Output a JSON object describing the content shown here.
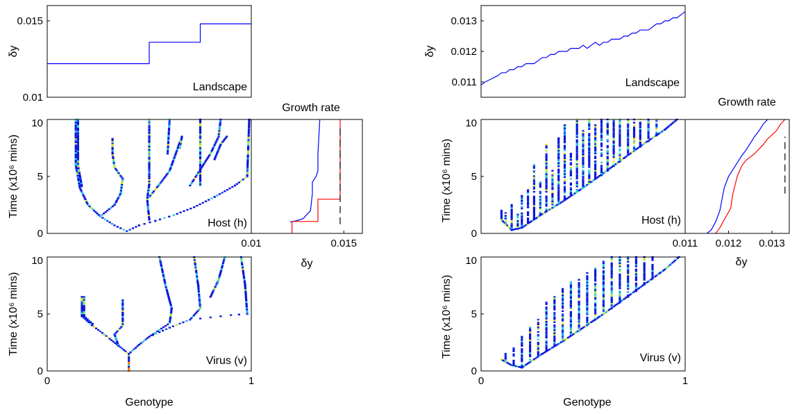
{
  "chart_data": [
    {
      "panel": "left-landscape",
      "type": "line",
      "ylabel": "δy",
      "xlim": [
        0,
        1
      ],
      "ylim": [
        0.01,
        0.016
      ],
      "yticks": [
        "0.01",
        "0.015"
      ],
      "annotation": "Landscape",
      "series": [
        {
          "color": "#0000ff",
          "x": [
            0,
            0.5,
            0.5,
            0.75,
            0.75,
            1
          ],
          "y": [
            0.0122,
            0.0122,
            0.0136,
            0.0136,
            0.0148,
            0.0148
          ]
        }
      ]
    },
    {
      "panel": "left-host",
      "type": "heatmap",
      "ylabel": "Time (x10⁶ mins)",
      "xlim": [
        0,
        1
      ],
      "ylim": [
        0,
        10
      ],
      "yticks": [
        "0",
        "5",
        "10"
      ],
      "annotation": "Host (h)",
      "branches": [
        [
          [
            0.39,
            0.2
          ],
          [
            0.33,
            0.7
          ],
          [
            0.26,
            1.5
          ],
          [
            0.2,
            2.5
          ],
          [
            0.16,
            4
          ],
          [
            0.14,
            6
          ],
          [
            0.14,
            10
          ]
        ],
        [
          [
            0.39,
            0.2
          ],
          [
            0.45,
            0.7
          ],
          [
            0.53,
            1.1
          ],
          [
            0.62,
            1.6
          ],
          [
            0.72,
            2.3
          ],
          [
            0.82,
            3.2
          ],
          [
            0.92,
            4.2
          ],
          [
            0.98,
            5
          ],
          [
            0.99,
            10
          ]
        ],
        [
          [
            0.26,
            1.5
          ],
          [
            0.33,
            2.5
          ],
          [
            0.36,
            3.5
          ],
          [
            0.37,
            4.8
          ],
          [
            0.33,
            5.8
          ],
          [
            0.32,
            7
          ],
          [
            0.32,
            8.3
          ]
        ],
        [
          [
            0.5,
            1.2
          ],
          [
            0.49,
            3
          ],
          [
            0.5,
            4.3
          ],
          [
            0.5,
            10
          ]
        ],
        [
          [
            0.5,
            3.2
          ],
          [
            0.55,
            4.3
          ],
          [
            0.6,
            5.5
          ],
          [
            0.63,
            7
          ],
          [
            0.65,
            8
          ]
        ],
        [
          [
            0.7,
            4.2
          ],
          [
            0.75,
            5.6
          ],
          [
            0.8,
            7
          ],
          [
            0.84,
            8.5
          ],
          [
            0.85,
            10
          ]
        ],
        [
          [
            0.82,
            6.5
          ],
          [
            0.85,
            7.8
          ],
          [
            0.88,
            8.5
          ]
        ],
        [
          [
            0.75,
            4.2
          ],
          [
            0.75,
            10
          ]
        ],
        [
          [
            0.59,
            7
          ],
          [
            0.6,
            10
          ]
        ],
        [
          [
            0.65,
            7.5
          ],
          [
            0.66,
            8.5
          ]
        ]
      ]
    },
    {
      "panel": "left-growth-rate",
      "type": "line",
      "title": "Growth rate",
      "xlabel": "δy",
      "xlim": [
        0.01,
        0.016
      ],
      "ylim": [
        0,
        10
      ],
      "xticks": [
        "0.01",
        "0.015"
      ],
      "series": [
        {
          "color": "#0000ff",
          "x": [
            0.0121,
            0.0124,
            0.0128,
            0.0132,
            0.0133,
            0.0133,
            0.0135,
            0.0136,
            0.0136,
            0.0137
          ],
          "y": [
            1,
            1.1,
            1.3,
            2.0,
            3.5,
            4.5,
            5.0,
            5.5,
            7,
            10
          ]
        },
        {
          "color": "#ff0000",
          "x": [
            0.0122,
            0.0122,
            0.0136,
            0.0136,
            0.0148,
            0.0148
          ],
          "y": [
            0,
            1.05,
            1.05,
            3.0,
            3.0,
            10
          ]
        },
        {
          "color": "#000000",
          "dash": true,
          "x": [
            0.0148,
            0.0148
          ],
          "y": [
            0.8,
            9.5
          ]
        }
      ]
    },
    {
      "panel": "left-virus",
      "type": "heatmap",
      "xlabel": "Genotype",
      "ylabel": "Time (x10⁶ mins)",
      "xlim": [
        0,
        1
      ],
      "ylim": [
        0,
        10
      ],
      "xticks": [
        "0",
        "1"
      ],
      "yticks": [
        "0",
        "5",
        "10"
      ],
      "annotation": "Virus (v)",
      "branches": [
        [
          [
            0.4,
            0
          ],
          [
            0.4,
            1.5
          ],
          [
            0.35,
            2.2
          ],
          [
            0.28,
            3.2
          ],
          [
            0.22,
            4
          ],
          [
            0.17,
            4.8
          ],
          [
            0.17,
            6.5
          ]
        ],
        [
          [
            0.4,
            1.5
          ],
          [
            0.45,
            2.3
          ],
          [
            0.5,
            3
          ],
          [
            0.55,
            3.6
          ],
          [
            0.6,
            4.2
          ],
          [
            0.61,
            5.5
          ],
          [
            0.58,
            7.5
          ],
          [
            0.55,
            10
          ]
        ],
        [
          [
            0.35,
            2.2
          ],
          [
            0.33,
            3.2
          ],
          [
            0.37,
            4
          ],
          [
            0.37,
            5
          ],
          [
            0.37,
            6.2
          ]
        ],
        [
          [
            0.5,
            3
          ],
          [
            0.6,
            3.8
          ],
          [
            0.7,
            4.5
          ],
          [
            0.75,
            5.5
          ],
          [
            0.74,
            7.5
          ],
          [
            0.72,
            10
          ]
        ],
        [
          [
            0.7,
            4.5
          ],
          [
            0.8,
            4.7
          ],
          [
            0.9,
            4.9
          ],
          [
            0.98,
            5
          ],
          [
            0.97,
            7.5
          ],
          [
            0.95,
            10
          ]
        ],
        [
          [
            0.8,
            6.5
          ],
          [
            0.84,
            8
          ],
          [
            0.87,
            10
          ]
        ]
      ]
    },
    {
      "panel": "right-landscape",
      "type": "line",
      "ylabel": "δy",
      "xlim": [
        0,
        1
      ],
      "ylim": [
        0.0105,
        0.0135
      ],
      "yticks": [
        "0.011",
        "0.012",
        "0.013"
      ],
      "annotation": "Landscape",
      "series": [
        {
          "color": "#0000ff",
          "x": [
            0,
            0.02,
            0.05,
            0.08,
            0.1,
            0.12,
            0.14,
            0.16,
            0.18,
            0.2,
            0.22,
            0.24,
            0.26,
            0.28,
            0.3,
            0.32,
            0.34,
            0.36,
            0.38,
            0.4,
            0.42,
            0.44,
            0.46,
            0.48,
            0.5,
            0.52,
            0.54,
            0.56,
            0.58,
            0.6,
            0.62,
            0.64,
            0.66,
            0.68,
            0.7,
            0.72,
            0.74,
            0.76,
            0.78,
            0.8,
            0.82,
            0.84,
            0.86,
            0.88,
            0.9,
            0.92,
            0.94,
            0.96,
            0.98,
            1.0
          ],
          "y": [
            0.0109,
            0.011,
            0.0111,
            0.0112,
            0.0113,
            0.0113,
            0.0114,
            0.0114,
            0.0115,
            0.0115,
            0.0116,
            0.0116,
            0.0116,
            0.0117,
            0.0118,
            0.0118,
            0.0119,
            0.0119,
            0.012,
            0.012,
            0.012,
            0.0121,
            0.0121,
            0.0121,
            0.0122,
            0.0121,
            0.0122,
            0.0123,
            0.0122,
            0.0123,
            0.0123,
            0.0124,
            0.0124,
            0.0124,
            0.0125,
            0.0125,
            0.0126,
            0.0126,
            0.0127,
            0.0127,
            0.0127,
            0.0128,
            0.0129,
            0.0129,
            0.013,
            0.013,
            0.0131,
            0.0131,
            0.0132,
            0.0133
          ]
        }
      ]
    },
    {
      "panel": "right-host",
      "type": "heatmap",
      "ylabel": "Time (x10⁶ mins)",
      "xlim": [
        0,
        1
      ],
      "ylim": [
        0,
        10
      ],
      "yticks": [
        "0",
        "5",
        "10"
      ],
      "annotation": "Host (h)",
      "front": [
        [
          0.1,
          1.2
        ],
        [
          0.15,
          0.3
        ],
        [
          0.2,
          0.5
        ],
        [
          0.3,
          1.7
        ],
        [
          0.4,
          2.8
        ],
        [
          0.5,
          4
        ],
        [
          0.6,
          5.3
        ],
        [
          0.7,
          6.6
        ],
        [
          0.8,
          7.9
        ],
        [
          0.9,
          9.1
        ],
        [
          0.96,
          10
        ]
      ],
      "spikes": [
        [
          0.1,
          1.2,
          2.0
        ],
        [
          0.12,
          0.8,
          1.8
        ],
        [
          0.15,
          0.3,
          2.5
        ],
        [
          0.18,
          0.4,
          1.8
        ],
        [
          0.2,
          0.5,
          3.3
        ],
        [
          0.23,
          0.9,
          3.8
        ],
        [
          0.26,
          1.3,
          6.0
        ],
        [
          0.29,
          1.7,
          4.5
        ],
        [
          0.32,
          2.0,
          7.8
        ],
        [
          0.35,
          2.4,
          5.5
        ],
        [
          0.38,
          2.6,
          8.5
        ],
        [
          0.41,
          3.0,
          9.5
        ],
        [
          0.44,
          3.3,
          7.0
        ],
        [
          0.47,
          3.7,
          10
        ],
        [
          0.5,
          4.0,
          9.0
        ],
        [
          0.53,
          4.4,
          10
        ],
        [
          0.56,
          4.8,
          9.5
        ],
        [
          0.59,
          5.1,
          10
        ],
        [
          0.62,
          5.5,
          10
        ],
        [
          0.65,
          5.9,
          10
        ],
        [
          0.68,
          6.3,
          10
        ],
        [
          0.72,
          6.9,
          10
        ],
        [
          0.75,
          7.2,
          10
        ],
        [
          0.78,
          7.6,
          10
        ],
        [
          0.82,
          8.1,
          10
        ],
        [
          0.86,
          8.6,
          10
        ]
      ]
    },
    {
      "panel": "right-growth-rate",
      "type": "line",
      "title": "Growth rate",
      "xlabel": "δy",
      "xlim": [
        0.011,
        0.0134
      ],
      "ylim": [
        0,
        10
      ],
      "xticks": [
        "0.011",
        "0.012",
        "0.013"
      ],
      "series": [
        {
          "color": "#0000ff",
          "x": [
            0.0115,
            0.0116,
            0.0117,
            0.0118,
            0.01185,
            0.0119,
            0.012,
            0.0121,
            0.0122,
            0.0123,
            0.0124,
            0.0125,
            0.0126,
            0.0127,
            0.0128,
            0.0129
          ],
          "y": [
            0,
            0.3,
            1.0,
            2.0,
            3.0,
            4.0,
            5.0,
            5.6,
            6.2,
            6.8,
            7.3,
            7.9,
            8.5,
            9.0,
            9.6,
            10
          ]
        },
        {
          "color": "#ff0000",
          "x": [
            0.0117,
            0.0118,
            0.0119,
            0.01205,
            0.0121,
            0.0122,
            0.0123,
            0.0124,
            0.0126,
            0.0128,
            0.0129,
            0.0131,
            0.0132,
            0.0133
          ],
          "y": [
            0,
            0.5,
            1.2,
            2.2,
            3.5,
            5.0,
            5.9,
            6.4,
            7.0,
            7.8,
            8.3,
            9.0,
            9.6,
            10
          ]
        },
        {
          "color": "#000000",
          "dash": true,
          "x": [
            0.0133,
            0.0133
          ],
          "y": [
            3.5,
            8.5
          ]
        }
      ]
    },
    {
      "panel": "right-virus",
      "type": "heatmap",
      "xlabel": "Genotype",
      "ylabel": "Time (x10⁶ mins)",
      "xlim": [
        0,
        1
      ],
      "ylim": [
        0,
        10
      ],
      "xticks": [
        "0",
        "1"
      ],
      "yticks": [
        "0",
        "5",
        "10"
      ],
      "annotation": "Virus (v)",
      "front": [
        [
          0.1,
          1.0
        ],
        [
          0.15,
          0.5
        ],
        [
          0.2,
          0.3
        ],
        [
          0.3,
          1.5
        ],
        [
          0.4,
          2.6
        ],
        [
          0.5,
          3.8
        ],
        [
          0.6,
          5.0
        ],
        [
          0.7,
          6.3
        ],
        [
          0.8,
          7.6
        ],
        [
          0.9,
          8.9
        ],
        [
          0.97,
          10
        ]
      ],
      "spikes": [
        [
          0.12,
          0.8,
          1.5
        ],
        [
          0.16,
          0.5,
          2.0
        ],
        [
          0.2,
          0.3,
          3.0
        ],
        [
          0.24,
          1.0,
          3.8
        ],
        [
          0.28,
          1.4,
          4.5
        ],
        [
          0.32,
          1.8,
          6.0
        ],
        [
          0.36,
          2.2,
          6.5
        ],
        [
          0.4,
          2.6,
          7.2
        ],
        [
          0.44,
          3.1,
          7.8
        ],
        [
          0.48,
          3.5,
          8.0
        ],
        [
          0.52,
          4.0,
          8.6
        ],
        [
          0.56,
          4.5,
          9.0
        ],
        [
          0.6,
          5.0,
          9.6
        ],
        [
          0.64,
          5.5,
          10
        ],
        [
          0.68,
          6.0,
          10
        ],
        [
          0.72,
          6.5,
          10
        ],
        [
          0.76,
          7.0,
          10
        ],
        [
          0.8,
          7.6,
          10
        ],
        [
          0.84,
          8.1,
          10
        ]
      ]
    }
  ]
}
